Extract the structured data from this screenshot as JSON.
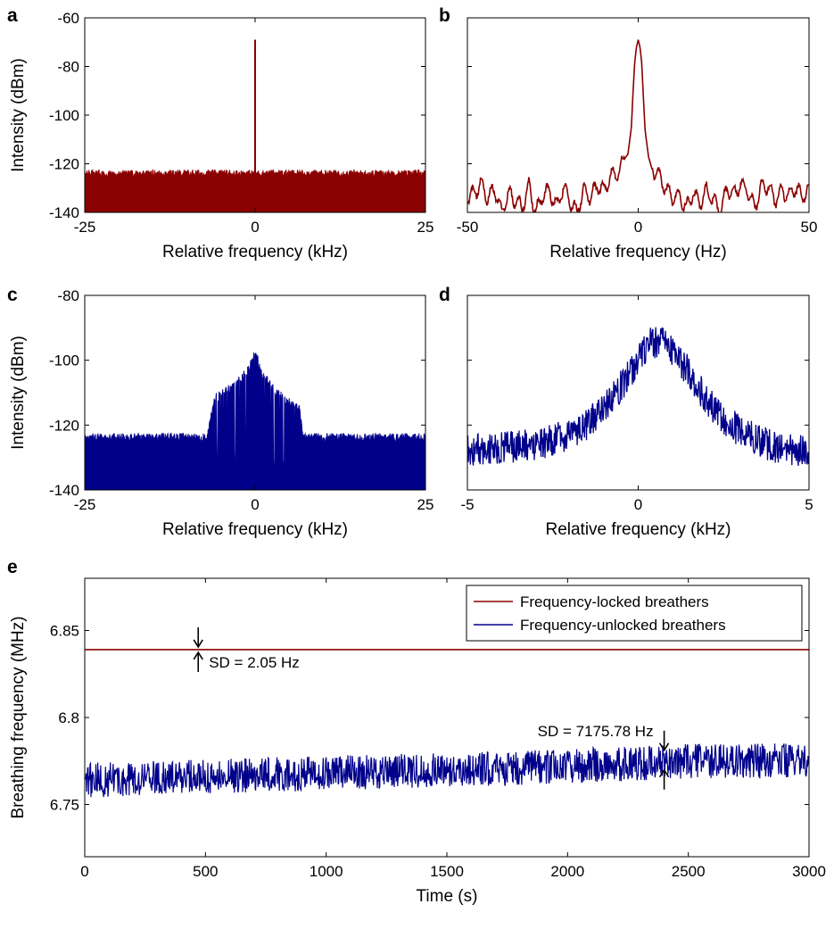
{
  "colors": {
    "locked": "#8b0000",
    "unlocked": "#00008b",
    "axis": "#000000"
  },
  "chart_data": [
    {
      "panel": "a",
      "type": "line",
      "color": "#8b0000",
      "xlabel": "Relative frequency (kHz)",
      "ylabel": "Intensity (dBm)",
      "xlim": [
        -25,
        25
      ],
      "ylim": [
        -140,
        -60
      ],
      "xticks": [
        -25,
        0,
        25
      ],
      "xtick_labels": [
        "-25",
        "0",
        "25"
      ],
      "yticks": [
        -140,
        -120,
        -100,
        -80,
        -60
      ],
      "ytick_labels": [
        "-140",
        "-120",
        "-100",
        "-80",
        "-60"
      ],
      "fill_to_bottom": true,
      "noise_floor": {
        "x": [
          -25,
          -12.5,
          0,
          12.5,
          25
        ],
        "y": [
          -124,
          -124,
          -124,
          -124,
          -124
        ]
      },
      "noise_peak_to_peak_db": 3,
      "peaks": [
        {
          "x": 0,
          "y": -69,
          "width": 0.05
        }
      ]
    },
    {
      "panel": "b",
      "type": "line",
      "color": "#8b0000",
      "xlabel": "Relative frequency (Hz)",
      "ylabel": "",
      "xlim": [
        -50,
        50
      ],
      "ylim": [
        -140,
        -60
      ],
      "xticks": [
        -50,
        0,
        50
      ],
      "xtick_labels": [
        "-50",
        "0",
        "50"
      ],
      "yticks": [
        -140,
        -120,
        -100,
        -80,
        -60
      ],
      "ytick_labels": [],
      "x": [
        -50,
        -48,
        -46,
        -44,
        -42,
        -40,
        -38,
        -36,
        -34,
        -32,
        -30,
        -28,
        -26,
        -24,
        -22,
        -20,
        -18,
        -16,
        -14,
        -12,
        -10,
        -8,
        -6,
        -4,
        -3,
        -2,
        -1.5,
        -1,
        -0.5,
        0,
        0.5,
        1,
        1.5,
        2,
        3,
        4,
        6,
        8,
        10,
        12,
        14,
        16,
        18,
        20,
        22,
        24,
        26,
        28,
        30,
        32,
        34,
        36,
        38,
        40,
        42,
        44,
        46,
        48,
        50
      ],
      "y": [
        -134,
        -132,
        -128,
        -134,
        -130,
        -140,
        -132,
        -135,
        -138,
        -129,
        -140,
        -133,
        -131,
        -138,
        -130,
        -135,
        -140,
        -131,
        -134,
        -129,
        -131,
        -125,
        -124,
        -118,
        -116,
        -105,
        -90,
        -78,
        -72,
        -69,
        -72,
        -78,
        -92,
        -106,
        -117,
        -122,
        -125,
        -130,
        -134,
        -133,
        -138,
        -132,
        -136,
        -131,
        -135,
        -140,
        -130,
        -133,
        -128,
        -131,
        -138,
        -130,
        -129,
        -135,
        -131,
        -133,
        -130,
        -133,
        -131
      ]
    },
    {
      "panel": "c",
      "type": "line",
      "color": "#00008b",
      "xlabel": "Relative frequency (kHz)",
      "ylabel": "Intensity (dBm)",
      "xlim": [
        -25,
        25
      ],
      "ylim": [
        -140,
        -80
      ],
      "xticks": [
        -25,
        0,
        25
      ],
      "xtick_labels": [
        "-25",
        "0",
        "25"
      ],
      "yticks": [
        -140,
        -120,
        -100,
        -80
      ],
      "ytick_labels": [
        "-140",
        "-120",
        "-100",
        "-80"
      ],
      "fill_to_bottom": true,
      "noise_floor": {
        "x": [
          -25,
          -7,
          -6,
          -3,
          -1,
          0,
          1,
          3,
          5,
          6.5,
          7,
          25
        ],
        "y": [
          -124,
          -124,
          -112,
          -108,
          -103,
          -98,
          -104,
          -110,
          -113,
          -115,
          -124,
          -124
        ]
      },
      "noise_peak_to_peak_db": 3,
      "spiky_range": [
        -6,
        6
      ]
    },
    {
      "panel": "d",
      "type": "line",
      "color": "#00008b",
      "xlabel": "Relative frequency (kHz)",
      "ylabel": "",
      "xlim": [
        -5,
        5
      ],
      "ylim": [
        -140,
        -80
      ],
      "xticks": [
        -5,
        0,
        5
      ],
      "xtick_labels": [
        "-5",
        "0",
        "5"
      ],
      "yticks": [
        -140,
        -120,
        -100,
        -80
      ],
      "ytick_labels": [],
      "trend": {
        "x": [
          -5,
          -4,
          -3,
          -2,
          -1.5,
          -1,
          -0.5,
          0,
          0.3,
          0.6,
          1,
          1.5,
          2,
          2.5,
          3,
          4,
          5
        ],
        "y": [
          -128,
          -127,
          -126,
          -123,
          -120,
          -115,
          -108,
          -100,
          -95,
          -94,
          -97,
          -104,
          -112,
          -118,
          -122,
          -127,
          -128
        ]
      },
      "noise_peak_to_peak_db": 5
    },
    {
      "panel": "e",
      "type": "line",
      "xlabel": "Time (s)",
      "ylabel": "Breathing frequency (MHz)",
      "xlim": [
        0,
        3000
      ],
      "ylim": [
        6.72,
        6.88
      ],
      "xticks": [
        0,
        500,
        1000,
        1500,
        2000,
        2500,
        3000
      ],
      "xtick_labels": [
        "0",
        "500",
        "1000",
        "1500",
        "2000",
        "2500",
        "3000"
      ],
      "yticks": [
        6.75,
        6.8,
        6.85
      ],
      "ytick_labels": [
        "6.75",
        "6.8",
        "6.85"
      ],
      "series": [
        {
          "name": "Frequency-locked breathers",
          "color": "#8b0000",
          "x": [
            0,
            3000
          ],
          "y": [
            6.839,
            6.839
          ]
        },
        {
          "name": "Frequency-unlocked breathers",
          "color": "#00008b",
          "trend": {
            "x": [
              0,
              500,
              1000,
              1500,
              2000,
              2500,
              3000
            ],
            "y": [
              6.764,
              6.766,
              6.768,
              6.77,
              6.772,
              6.775,
              6.775
            ]
          },
          "noise_peak_to_peak": 0.02
        }
      ],
      "legend": "top-right",
      "annotations": [
        {
          "text": "SD = 2.05 Hz",
          "x": 470,
          "y": 6.839
        },
        {
          "text": "SD = 7175.78 Hz",
          "x": 2400,
          "y": 6.775
        }
      ]
    }
  ]
}
